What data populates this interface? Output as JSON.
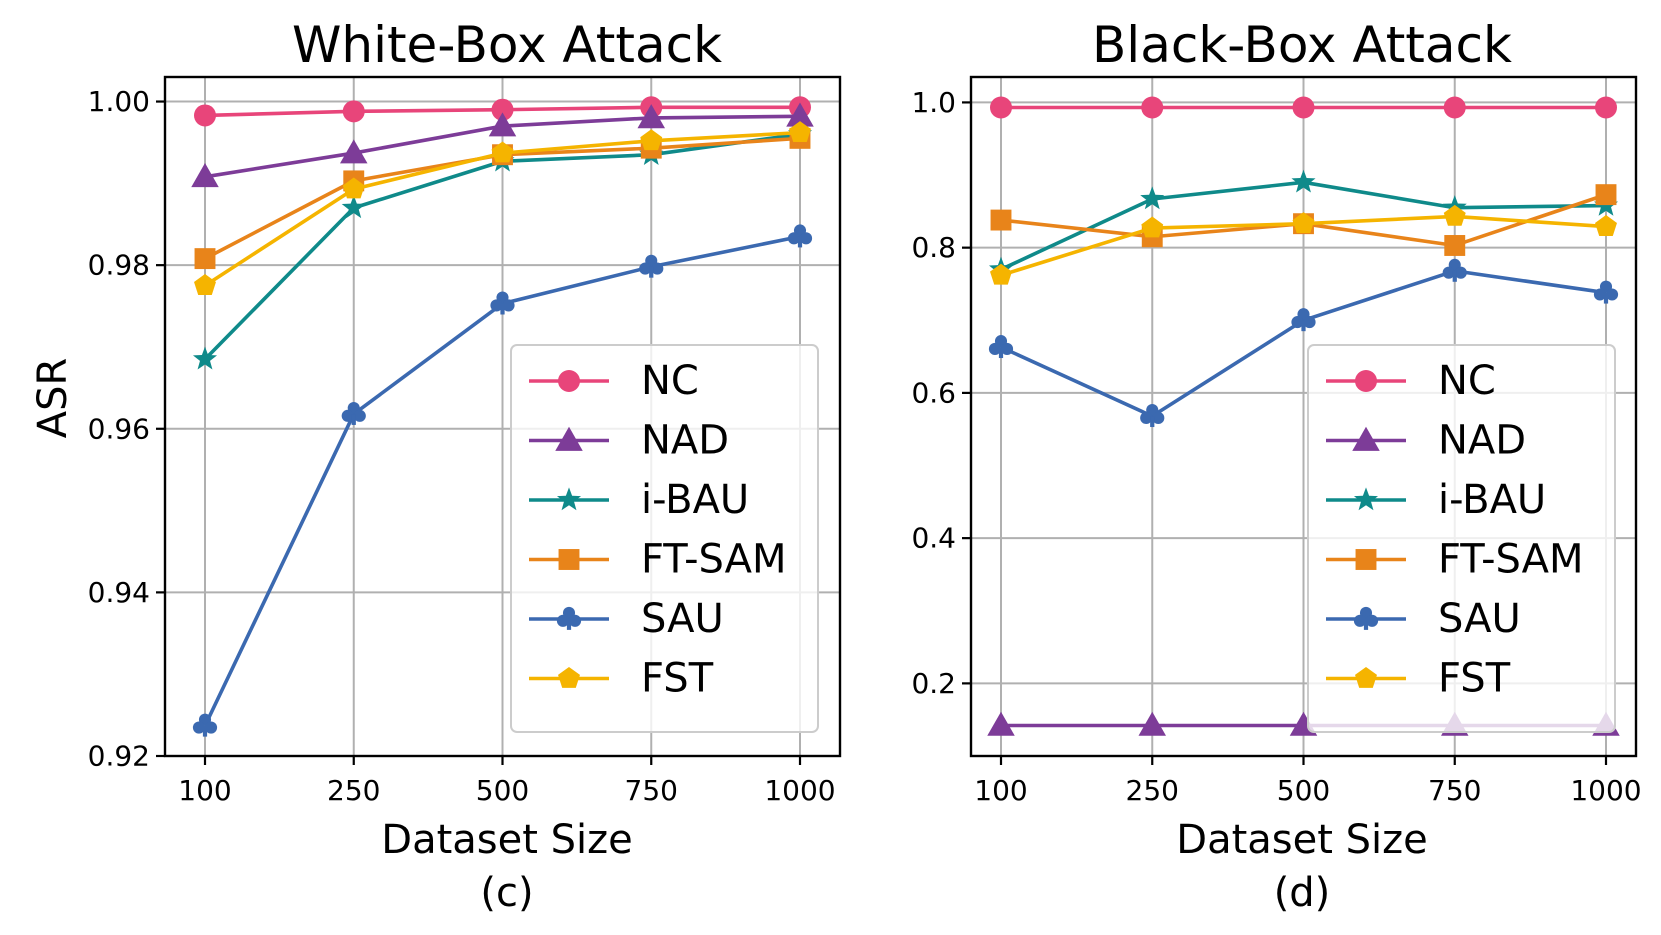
{
  "figure": {
    "ylabel": "ASR"
  },
  "chart_data": [
    {
      "type": "line",
      "title": "White-Box Attack",
      "xlabel": "Dataset Size",
      "subtitle": "(c)",
      "ylabel": "ASR",
      "categories": [
        "100",
        "250",
        "500",
        "750",
        "1000"
      ],
      "ylim": [
        0.92,
        1.003
      ],
      "yticks": [
        0.92,
        0.94,
        0.96,
        0.98,
        1.0
      ],
      "ytick_labels": [
        "0.92",
        "0.94",
        "0.96",
        "0.98",
        "1.00"
      ],
      "grid": true,
      "legend_position": "lower right",
      "series": [
        {
          "name": "NC",
          "color": "#e8457a",
          "marker": "circle",
          "values": [
            0.9983,
            0.9988,
            0.999,
            0.9993,
            0.9993
          ]
        },
        {
          "name": "NAD",
          "color": "#7d3c98",
          "marker": "triangle",
          "values": [
            0.9908,
            0.9937,
            0.997,
            0.998,
            0.9982
          ]
        },
        {
          "name": "i-BAU",
          "color": "#0f8a8a",
          "marker": "star",
          "values": [
            0.9685,
            0.987,
            0.9927,
            0.9935,
            0.996
          ]
        },
        {
          "name": "FT-SAM",
          "color": "#e8841a",
          "marker": "square",
          "values": [
            0.9808,
            0.9903,
            0.9935,
            0.9943,
            0.9955
          ]
        },
        {
          "name": "SAU",
          "color": "#3b69b0",
          "marker": "club",
          "values": [
            0.9237,
            0.9618,
            0.9753,
            0.9798,
            0.9835
          ]
        },
        {
          "name": "FST",
          "color": "#f5b400",
          "marker": "pentagon",
          "values": [
            0.9775,
            0.9893,
            0.9937,
            0.9952,
            0.9962
          ]
        }
      ]
    },
    {
      "type": "line",
      "title": "Black-Box Attack",
      "xlabel": "Dataset Size",
      "subtitle": "(d)",
      "ylabel": "",
      "categories": [
        "100",
        "250",
        "500",
        "750",
        "1000"
      ],
      "ylim": [
        0.1,
        1.035
      ],
      "yticks": [
        0.2,
        0.4,
        0.6,
        0.8,
        1.0
      ],
      "ytick_labels": [
        "0.2",
        "0.4",
        "0.6",
        "0.8",
        "1.0"
      ],
      "grid": true,
      "legend_position": "lower right",
      "series": [
        {
          "name": "NC",
          "color": "#e8457a",
          "marker": "circle",
          "values": [
            0.993,
            0.993,
            0.993,
            0.993,
            0.993
          ]
        },
        {
          "name": "NAD",
          "color": "#7d3c98",
          "marker": "triangle",
          "values": [
            0.142,
            0.142,
            0.142,
            0.142,
            0.142
          ]
        },
        {
          "name": "i-BAU",
          "color": "#0f8a8a",
          "marker": "star",
          "values": [
            0.77,
            0.867,
            0.89,
            0.855,
            0.858
          ]
        },
        {
          "name": "FT-SAM",
          "color": "#e8841a",
          "marker": "square",
          "values": [
            0.838,
            0.815,
            0.833,
            0.803,
            0.873
          ]
        },
        {
          "name": "SAU",
          "color": "#3b69b0",
          "marker": "club",
          "values": [
            0.663,
            0.568,
            0.7,
            0.768,
            0.738
          ]
        },
        {
          "name": "FST",
          "color": "#f5b400",
          "marker": "pentagon",
          "values": [
            0.762,
            0.827,
            0.833,
            0.843,
            0.829
          ]
        }
      ]
    }
  ]
}
